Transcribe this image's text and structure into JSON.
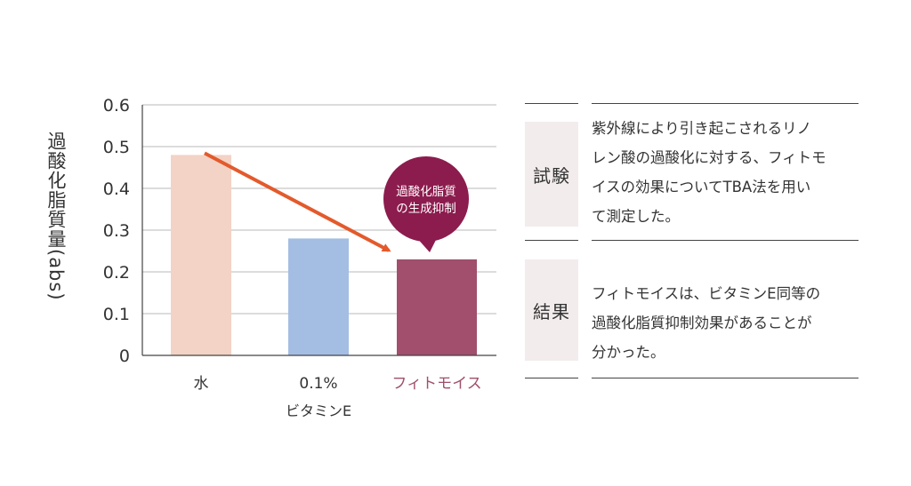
{
  "chart_data": {
    "type": "bar",
    "categories": [
      "水",
      "0.1%",
      "フィトモイス"
    ],
    "category_sublabels": [
      "",
      "ビタミンE",
      ""
    ],
    "values": [
      0.48,
      0.28,
      0.23
    ],
    "ylabel": "過酸化脂質量(abs)",
    "ylim": [
      0,
      0.6
    ],
    "yticks": [
      "0",
      "0.1",
      "0.2",
      "0.3",
      "0.4",
      "0.5",
      "0.6"
    ],
    "grid": true,
    "annotation": {
      "line1": "過酸化脂質",
      "line2": "の生成抑制"
    }
  },
  "colors": {
    "bar_water": "#f2d3c6",
    "bar_vitamin_e": "#a4bde3",
    "bar_phytomoist": "#a14f6c",
    "phytomoist_label": "#a14f6c",
    "arrow": "#e35a2c",
    "bubble": "#8c1c4e",
    "tag_bg": "#f3ecec"
  },
  "side": {
    "test": {
      "label": "試験",
      "lines": [
        "紫外線により引き起こされるリノ",
        "レン酸の過酸化に対する、フィトモ",
        "イスの効果についてTBA法を用い",
        "て測定した。"
      ]
    },
    "result": {
      "label": "結果",
      "lines": [
        "フィトモイスは、ビタミンE同等の",
        "過酸化脂質抑制効果があることが",
        "分かった。"
      ]
    }
  }
}
